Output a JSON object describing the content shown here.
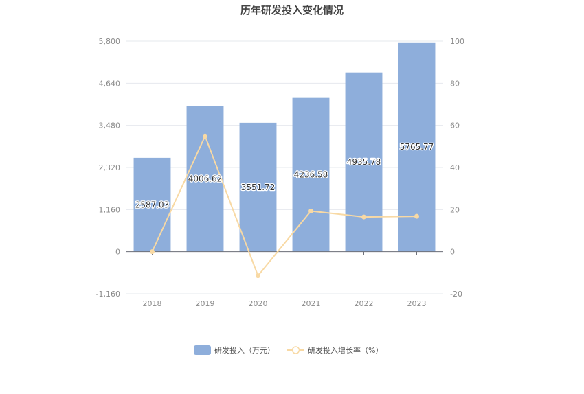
{
  "chart_data": {
    "type": "bar",
    "title": "历年研发投入变化情况",
    "categories": [
      "2018",
      "2019",
      "2020",
      "2021",
      "2022",
      "2023"
    ],
    "series": [
      {
        "name": "研发投入（万元）",
        "type": "bar",
        "axis": "left",
        "color": "#8eaedb",
        "values": [
          2587.03,
          4006.62,
          3551.72,
          4236.58,
          4935.78,
          5765.77
        ],
        "labels": [
          "2587.03",
          "4006.62",
          "3551.72",
          "4236.58",
          "4935.78",
          "5765.77"
        ]
      },
      {
        "name": "研发投入增长率（%）",
        "type": "line",
        "axis": "right",
        "color": "#f8d9a4",
        "values": [
          0,
          54.9,
          -11.4,
          19.3,
          16.5,
          16.8
        ]
      }
    ],
    "y_left": {
      "min": -1160,
      "max": 5800,
      "ticks": [
        -1160,
        0,
        1160,
        2320,
        3480,
        4640,
        5800
      ],
      "tick_labels": [
        "-1,160",
        "0",
        "1,160",
        "2,320",
        "3,480",
        "4,640",
        "5,800"
      ]
    },
    "y_right": {
      "min": -20,
      "max": 100,
      "ticks": [
        -20,
        0,
        20,
        40,
        60,
        80,
        100
      ],
      "tick_labels": [
        "-20",
        "0",
        "20",
        "40",
        "60",
        "80",
        "100"
      ]
    },
    "grid": true,
    "legend_position": "bottom"
  }
}
